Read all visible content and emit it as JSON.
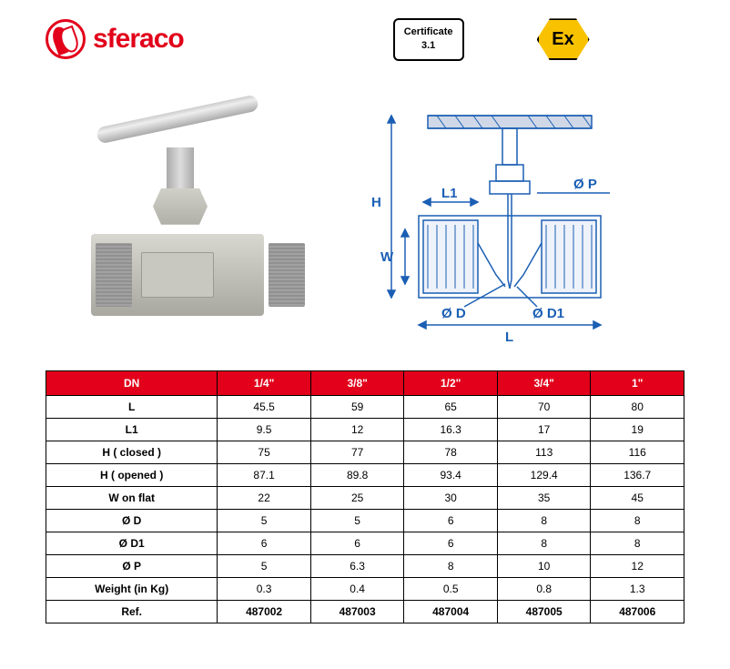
{
  "brand": "sferaco",
  "cert": {
    "line1": "Certificate",
    "line2": "3.1"
  },
  "ex_label": "Ex",
  "diagram_labels": {
    "H": "H",
    "L1": "L1",
    "W": "W",
    "D": "Ø D",
    "D1": "Ø D1",
    "P": "Ø P",
    "L": "L"
  },
  "table": {
    "header": [
      "DN",
      "1/4\"",
      "3/8\"",
      "1/2\"",
      "3/4\"",
      "1\""
    ],
    "rows": [
      [
        "L",
        "45.5",
        "59",
        "65",
        "70",
        "80"
      ],
      [
        "L1",
        "9.5",
        "12",
        "16.3",
        "17",
        "19"
      ],
      [
        "H ( closed )",
        "75",
        "77",
        "78",
        "113",
        "116"
      ],
      [
        "H ( opened )",
        "87.1",
        "89.8",
        "93.4",
        "129.4",
        "136.7"
      ],
      [
        "W on flat",
        "22",
        "25",
        "30",
        "35",
        "45"
      ],
      [
        "Ø D",
        "5",
        "5",
        "6",
        "8",
        "8"
      ],
      [
        "Ø D1",
        "6",
        "6",
        "6",
        "8",
        "8"
      ],
      [
        "Ø P",
        "5",
        "6.3",
        "8",
        "10",
        "12"
      ],
      [
        "Weight (in Kg)",
        "0.3",
        "0.4",
        "0.5",
        "0.8",
        "1.3"
      ],
      [
        "Ref.",
        "487002",
        "487003",
        "487004",
        "487005",
        "487006"
      ]
    ]
  },
  "colors": {
    "brand_red": "#e2001a",
    "ex_yellow": "#f9c200",
    "diagram_blue": "#1a5fb4"
  }
}
